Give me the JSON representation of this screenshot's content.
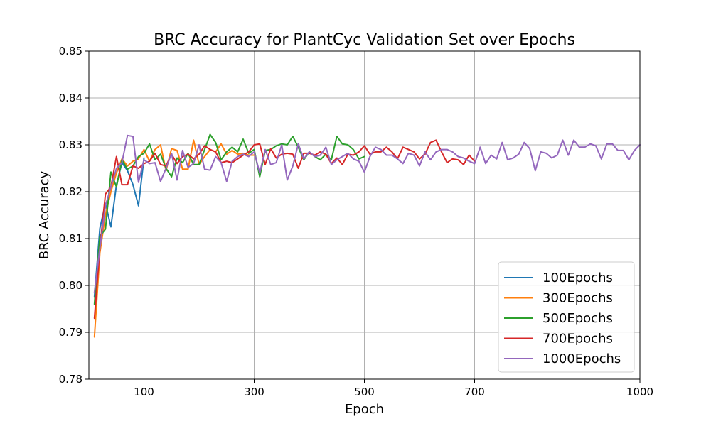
{
  "chart_data": {
    "type": "line",
    "title": "BRC Accuracy for PlantCyc Validation Set over Epochs",
    "xlabel": "Epoch",
    "ylabel": "BRC Accuracy",
    "xlim": [
      0,
      1000
    ],
    "ylim": [
      0.78,
      0.85
    ],
    "xticks": [
      100,
      300,
      500,
      700,
      1000
    ],
    "yticks": [
      0.78,
      0.79,
      0.8,
      0.81,
      0.82,
      0.83,
      0.84,
      0.85
    ],
    "ytick_labels": [
      "0.78",
      "0.79",
      "0.80",
      "0.81",
      "0.82",
      "0.83",
      "0.84",
      "0.85"
    ],
    "grid": true,
    "legend_position": "bottom-right",
    "series": [
      {
        "name": "100Epochs",
        "color": "#1f77b4",
        "x": [
          10,
          20,
          30,
          40,
          50,
          60,
          70,
          80,
          90,
          100
        ],
        "y": [
          0.7975,
          0.8122,
          0.8175,
          0.8125,
          0.8215,
          0.8262,
          0.8245,
          0.8215,
          0.817,
          0.8272
        ]
      },
      {
        "name": "300Epochs",
        "color": "#ff7f0e",
        "x": [
          10,
          20,
          30,
          40,
          50,
          60,
          70,
          80,
          90,
          100,
          110,
          120,
          130,
          140,
          150,
          160,
          170,
          180,
          190,
          200,
          210,
          220,
          230,
          240,
          250,
          260,
          270,
          280,
          290,
          300
        ],
        "y": [
          0.789,
          0.807,
          0.815,
          0.82,
          0.824,
          0.827,
          0.8255,
          0.8265,
          0.827,
          0.829,
          0.8265,
          0.829,
          0.83,
          0.8245,
          0.8292,
          0.8288,
          0.8248,
          0.8248,
          0.831,
          0.8258,
          0.8275,
          0.829,
          0.8285,
          0.8302,
          0.828,
          0.8288,
          0.828,
          0.8282,
          0.8278,
          0.8278
        ]
      },
      {
        "name": "500Epochs",
        "color": "#2ca02c",
        "x": [
          10,
          20,
          30,
          40,
          50,
          60,
          70,
          80,
          90,
          100,
          110,
          120,
          130,
          140,
          150,
          160,
          170,
          180,
          190,
          200,
          210,
          220,
          230,
          240,
          250,
          260,
          270,
          280,
          290,
          300,
          310,
          320,
          330,
          340,
          350,
          360,
          370,
          380,
          390,
          400,
          410,
          420,
          430,
          440,
          450,
          460,
          470,
          480,
          490,
          500
        ],
        "y": [
          0.796,
          0.8105,
          0.812,
          0.8242,
          0.821,
          0.8268,
          0.8248,
          0.8255,
          0.8275,
          0.8282,
          0.8302,
          0.8268,
          0.828,
          0.825,
          0.8232,
          0.8272,
          0.8262,
          0.8282,
          0.8258,
          0.8258,
          0.829,
          0.8322,
          0.8305,
          0.8268,
          0.8285,
          0.8295,
          0.8285,
          0.8312,
          0.8282,
          0.829,
          0.8232,
          0.8288,
          0.829,
          0.8298,
          0.8302,
          0.83,
          0.8318,
          0.8295,
          0.8268,
          0.8285,
          0.8275,
          0.8268,
          0.828,
          0.8268,
          0.8318,
          0.8302,
          0.83,
          0.829,
          0.827,
          0.8275
        ]
      },
      {
        "name": "700Epochs",
        "color": "#d62728",
        "x": [
          10,
          20,
          30,
          40,
          50,
          60,
          70,
          80,
          90,
          100,
          110,
          120,
          130,
          140,
          150,
          160,
          170,
          180,
          190,
          200,
          210,
          220,
          230,
          240,
          250,
          260,
          270,
          280,
          290,
          300,
          310,
          320,
          330,
          340,
          350,
          360,
          370,
          380,
          390,
          400,
          410,
          420,
          430,
          440,
          450,
          460,
          470,
          480,
          490,
          500,
          510,
          520,
          530,
          540,
          550,
          560,
          570,
          580,
          590,
          600,
          610,
          620,
          630,
          640,
          650,
          660,
          670,
          680,
          690,
          700
        ],
        "y": [
          0.793,
          0.808,
          0.8195,
          0.821,
          0.8275,
          0.8215,
          0.8215,
          0.8255,
          0.825,
          0.826,
          0.8265,
          0.8282,
          0.8258,
          0.8255,
          0.828,
          0.826,
          0.8275,
          0.828,
          0.827,
          0.828,
          0.8298,
          0.829,
          0.8285,
          0.8262,
          0.8265,
          0.8262,
          0.827,
          0.8278,
          0.8285,
          0.83,
          0.8302,
          0.8258,
          0.8292,
          0.8272,
          0.828,
          0.8282,
          0.828,
          0.825,
          0.8282,
          0.8282,
          0.8278,
          0.8285,
          0.828,
          0.826,
          0.8272,
          0.8258,
          0.828,
          0.8278,
          0.8285,
          0.8298,
          0.828,
          0.8285,
          0.8285,
          0.8295,
          0.8285,
          0.827,
          0.8295,
          0.829,
          0.8285,
          0.827,
          0.828,
          0.8305,
          0.831,
          0.8285,
          0.8262,
          0.827,
          0.8268,
          0.8258,
          0.8278,
          0.8265
        ]
      },
      {
        "name": "1000Epochs",
        "color": "#9467bd",
        "x": [
          10,
          20,
          30,
          40,
          50,
          60,
          70,
          80,
          90,
          100,
          110,
          120,
          130,
          140,
          150,
          160,
          170,
          180,
          190,
          200,
          210,
          220,
          230,
          240,
          250,
          260,
          270,
          280,
          290,
          300,
          310,
          320,
          330,
          340,
          350,
          360,
          370,
          380,
          390,
          400,
          410,
          420,
          430,
          440,
          450,
          460,
          470,
          480,
          490,
          500,
          510,
          520,
          530,
          540,
          550,
          560,
          570,
          580,
          590,
          600,
          610,
          620,
          630,
          640,
          650,
          660,
          670,
          680,
          690,
          700,
          710,
          720,
          730,
          740,
          750,
          760,
          770,
          780,
          790,
          800,
          810,
          820,
          830,
          840,
          850,
          860,
          870,
          880,
          890,
          900,
          910,
          920,
          930,
          940,
          950,
          960,
          970,
          980,
          990,
          1000
        ],
        "y": [
          0.7985,
          0.808,
          0.817,
          0.821,
          0.825,
          0.8262,
          0.832,
          0.8318,
          0.822,
          0.8268,
          0.826,
          0.8262,
          0.8222,
          0.825,
          0.8282,
          0.8225,
          0.8288,
          0.8252,
          0.826,
          0.83,
          0.8248,
          0.8246,
          0.8275,
          0.8262,
          0.8222,
          0.8265,
          0.8275,
          0.828,
          0.8275,
          0.8285,
          0.824,
          0.829,
          0.8258,
          0.8262,
          0.83,
          0.8225,
          0.8255,
          0.8302,
          0.827,
          0.8285,
          0.8275,
          0.8278,
          0.8295,
          0.8258,
          0.8268,
          0.8275,
          0.8282,
          0.827,
          0.8265,
          0.8242,
          0.8275,
          0.8295,
          0.829,
          0.8278,
          0.8278,
          0.827,
          0.826,
          0.8282,
          0.8278,
          0.8255,
          0.8285,
          0.8268,
          0.8285,
          0.829,
          0.829,
          0.8285,
          0.8275,
          0.8272,
          0.8265,
          0.826,
          0.8295,
          0.826,
          0.8278,
          0.827,
          0.8305,
          0.8268,
          0.8272,
          0.828,
          0.8305,
          0.8292,
          0.8245,
          0.8285,
          0.8282,
          0.8272,
          0.8278,
          0.831,
          0.8278,
          0.831,
          0.8295,
          0.8295,
          0.8302,
          0.8298,
          0.827,
          0.8302,
          0.8302,
          0.8288,
          0.8288,
          0.8268,
          0.8288,
          0.83
        ]
      }
    ]
  }
}
